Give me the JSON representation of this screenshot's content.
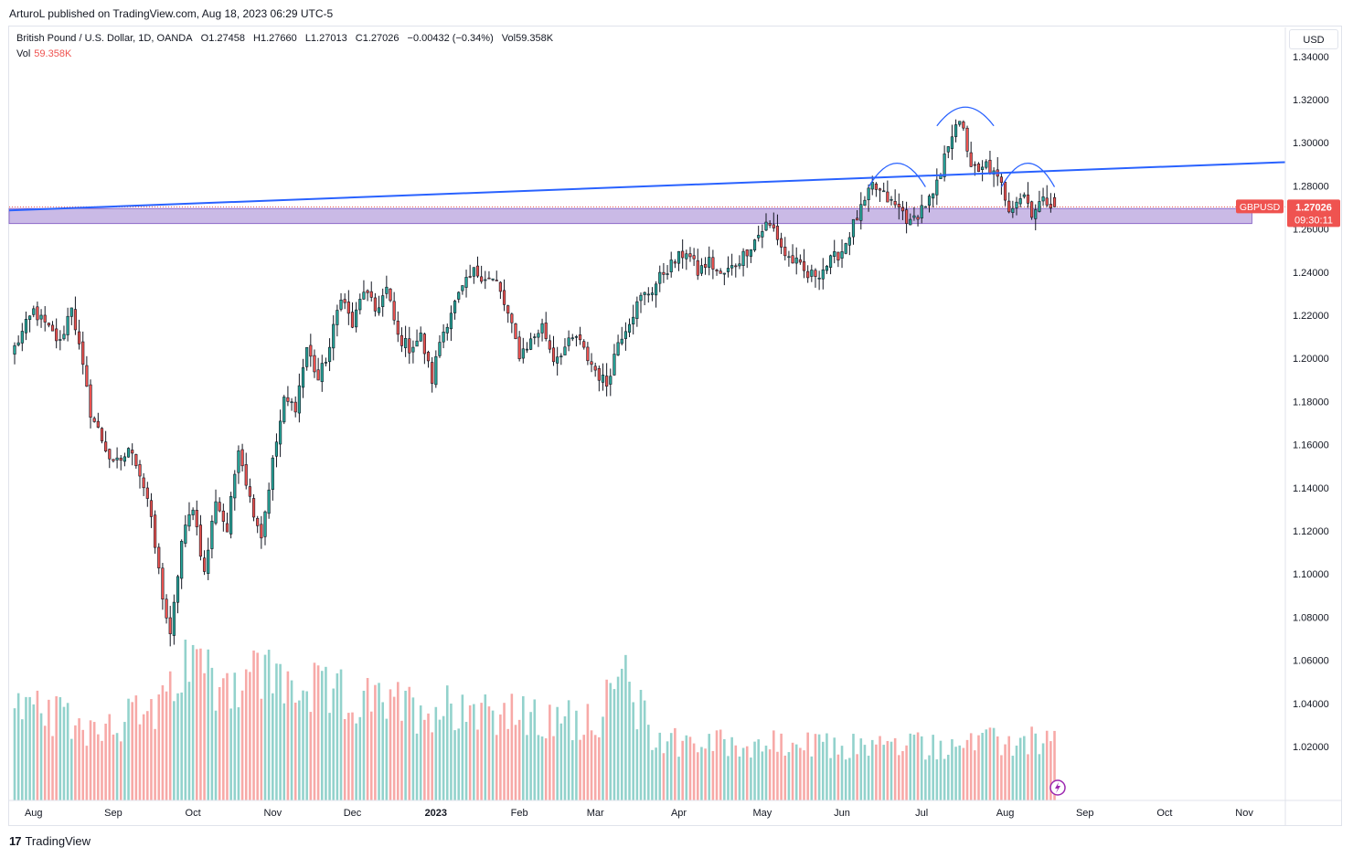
{
  "publisher_line": "ArturoL published on TradingView.com, Aug 18, 2023 06:29 UTC-5",
  "legend": {
    "symbol": "British Pound / U.S. Dollar, 1D, OANDA",
    "open": "O1.27458",
    "high": "H1.27660",
    "low": "L1.27013",
    "close": "C1.27026",
    "change": "−0.00432 (−0.34%)",
    "vol": "Vol59.358K",
    "vol_label": "Vol",
    "vol_value": "59.358K"
  },
  "currency_button": "USD",
  "price_tag": {
    "symbol": "GBPUSD",
    "price": "1.27026",
    "countdown": "09:30:11"
  },
  "brand": {
    "logo": "17",
    "name": "TradingView"
  },
  "colors": {
    "up": "#26a69a",
    "down": "#ef5350",
    "up_vol": "#92d2cc",
    "down_vol": "#f7a9a7",
    "trendline": "#2962ff",
    "zone": "#b39ddb",
    "arc": "#2962ff"
  },
  "chart_data": {
    "type": "candlestick",
    "title": "British Pound / U.S. Dollar, 1D, OANDA",
    "ylim": [
      0.995,
      1.345
    ],
    "y_ticks": [
      "1.34000",
      "1.32000",
      "1.30000",
      "1.28000",
      "1.26000",
      "1.24000",
      "1.22000",
      "1.20000",
      "1.18000",
      "1.16000",
      "1.14000",
      "1.12000",
      "1.10000",
      "1.08000",
      "1.06000",
      "1.04000",
      "1.02000"
    ],
    "y_tick_values": [
      1.34,
      1.32,
      1.3,
      1.28,
      1.26,
      1.24,
      1.22,
      1.2,
      1.18,
      1.16,
      1.14,
      1.12,
      1.1,
      1.08,
      1.06,
      1.04,
      1.02
    ],
    "x_labels": [
      "Aug",
      "Sep",
      "Oct",
      "Nov",
      "Dec",
      "2023",
      "Feb",
      "Mar",
      "Apr",
      "May",
      "Jun",
      "Jul",
      "Aug",
      "Sep",
      "Oct",
      "Nov"
    ],
    "x_label_bar_index": [
      5,
      26,
      47,
      68,
      89,
      111,
      133,
      153,
      175,
      197,
      218,
      239,
      261,
      282,
      303,
      324
    ],
    "bars_total_span": 330,
    "anchors": [
      {
        "i": 0,
        "p": 1.205
      },
      {
        "i": 5,
        "p": 1.222
      },
      {
        "i": 12,
        "p": 1.207
      },
      {
        "i": 15,
        "p": 1.225
      },
      {
        "i": 20,
        "p": 1.175
      },
      {
        "i": 26,
        "p": 1.15
      },
      {
        "i": 31,
        "p": 1.158
      },
      {
        "i": 35,
        "p": 1.135
      },
      {
        "i": 39,
        "p": 1.09
      },
      {
        "i": 41,
        "p": 1.07
      },
      {
        "i": 44,
        "p": 1.115
      },
      {
        "i": 47,
        "p": 1.132
      },
      {
        "i": 50,
        "p": 1.1
      },
      {
        "i": 53,
        "p": 1.135
      },
      {
        "i": 56,
        "p": 1.12
      },
      {
        "i": 59,
        "p": 1.16
      },
      {
        "i": 62,
        "p": 1.135
      },
      {
        "i": 65,
        "p": 1.118
      },
      {
        "i": 68,
        "p": 1.152
      },
      {
        "i": 71,
        "p": 1.18
      },
      {
        "i": 74,
        "p": 1.178
      },
      {
        "i": 77,
        "p": 1.205
      },
      {
        "i": 80,
        "p": 1.19
      },
      {
        "i": 83,
        "p": 1.205
      },
      {
        "i": 86,
        "p": 1.23
      },
      {
        "i": 89,
        "p": 1.215
      },
      {
        "i": 92,
        "p": 1.232
      },
      {
        "i": 95,
        "p": 1.222
      },
      {
        "i": 98,
        "p": 1.232
      },
      {
        "i": 101,
        "p": 1.21
      },
      {
        "i": 104,
        "p": 1.205
      },
      {
        "i": 107,
        "p": 1.21
      },
      {
        "i": 110,
        "p": 1.19
      },
      {
        "i": 112,
        "p": 1.208
      },
      {
        "i": 115,
        "p": 1.222
      },
      {
        "i": 118,
        "p": 1.232
      },
      {
        "i": 121,
        "p": 1.24
      },
      {
        "i": 124,
        "p": 1.238
      },
      {
        "i": 127,
        "p": 1.235
      },
      {
        "i": 130,
        "p": 1.22
      },
      {
        "i": 133,
        "p": 1.202
      },
      {
        "i": 136,
        "p": 1.208
      },
      {
        "i": 139,
        "p": 1.215
      },
      {
        "i": 142,
        "p": 1.2
      },
      {
        "i": 145,
        "p": 1.205
      },
      {
        "i": 148,
        "p": 1.21
      },
      {
        "i": 151,
        "p": 1.2
      },
      {
        "i": 154,
        "p": 1.192
      },
      {
        "i": 156,
        "p": 1.188
      },
      {
        "i": 159,
        "p": 1.208
      },
      {
        "i": 162,
        "p": 1.218
      },
      {
        "i": 165,
        "p": 1.228
      },
      {
        "i": 168,
        "p": 1.232
      },
      {
        "i": 171,
        "p": 1.24
      },
      {
        "i": 174,
        "p": 1.245
      },
      {
        "i": 177,
        "p": 1.25
      },
      {
        "i": 180,
        "p": 1.24
      },
      {
        "i": 183,
        "p": 1.245
      },
      {
        "i": 186,
        "p": 1.238
      },
      {
        "i": 189,
        "p": 1.242
      },
      {
        "i": 192,
        "p": 1.248
      },
      {
        "i": 195,
        "p": 1.255
      },
      {
        "i": 198,
        "p": 1.262
      },
      {
        "i": 200,
        "p": 1.26
      },
      {
        "i": 203,
        "p": 1.248
      },
      {
        "i": 206,
        "p": 1.244
      },
      {
        "i": 209,
        "p": 1.238
      },
      {
        "i": 212,
        "p": 1.24
      },
      {
        "i": 215,
        "p": 1.245
      },
      {
        "i": 218,
        "p": 1.25
      },
      {
        "i": 221,
        "p": 1.262
      },
      {
        "i": 224,
        "p": 1.272
      },
      {
        "i": 226,
        "p": 1.28
      },
      {
        "i": 228,
        "p": 1.277
      },
      {
        "i": 231,
        "p": 1.272
      },
      {
        "i": 234,
        "p": 1.268
      },
      {
        "i": 236,
        "p": 1.262
      },
      {
        "i": 239,
        "p": 1.27
      },
      {
        "i": 242,
        "p": 1.275
      },
      {
        "i": 244,
        "p": 1.285
      },
      {
        "i": 246,
        "p": 1.3
      },
      {
        "i": 248,
        "p": 1.31
      },
      {
        "i": 250,
        "p": 1.305
      },
      {
        "i": 252,
        "p": 1.29
      },
      {
        "i": 254,
        "p": 1.285
      },
      {
        "i": 256,
        "p": 1.29
      },
      {
        "i": 258,
        "p": 1.285
      },
      {
        "i": 260,
        "p": 1.28
      },
      {
        "i": 262,
        "p": 1.27
      },
      {
        "i": 264,
        "p": 1.274
      },
      {
        "i": 266,
        "p": 1.276
      },
      {
        "i": 268,
        "p": 1.268
      },
      {
        "i": 270,
        "p": 1.272
      },
      {
        "i": 272,
        "p": 1.273
      },
      {
        "i": 274,
        "p": 1.272
      }
    ],
    "last": {
      "open": 1.27458,
      "high": 1.2766,
      "low": 1.27013,
      "close": 1.27026
    },
    "trendline": {
      "from": {
        "i": 0,
        "p": 1.2686
      },
      "to": {
        "i": 330,
        "p": 1.291
      }
    },
    "zone": {
      "from_i": 0,
      "to_i": 326,
      "top": 1.2695,
      "bottom": 1.2625
    },
    "arcs": [
      {
        "from_i": 225,
        "to_i": 240,
        "base_p": 1.2795,
        "peak_p": 1.2905
      },
      {
        "from_i": 243,
        "to_i": 258,
        "base_p": 1.3078,
        "peak_p": 1.3165
      },
      {
        "from_i": 260,
        "to_i": 274,
        "base_p": 1.2795,
        "peak_p": 1.2905
      }
    ],
    "volume_scale_max": 68,
    "volume_profile": [
      {
        "i": 0,
        "v": 40
      },
      {
        "i": 20,
        "v": 32
      },
      {
        "i": 40,
        "v": 40
      },
      {
        "i": 45,
        "v": 62
      },
      {
        "i": 55,
        "v": 52
      },
      {
        "i": 65,
        "v": 55
      },
      {
        "i": 75,
        "v": 48
      },
      {
        "i": 85,
        "v": 45
      },
      {
        "i": 95,
        "v": 42
      },
      {
        "i": 108,
        "v": 40
      },
      {
        "i": 120,
        "v": 42
      },
      {
        "i": 130,
        "v": 38
      },
      {
        "i": 140,
        "v": 33
      },
      {
        "i": 155,
        "v": 38
      },
      {
        "i": 160,
        "v": 55
      },
      {
        "i": 168,
        "v": 28
      },
      {
        "i": 180,
        "v": 25
      },
      {
        "i": 200,
        "v": 24
      },
      {
        "i": 215,
        "v": 23
      },
      {
        "i": 230,
        "v": 24
      },
      {
        "i": 245,
        "v": 24
      },
      {
        "i": 260,
        "v": 25
      },
      {
        "i": 274,
        "v": 26
      }
    ]
  }
}
